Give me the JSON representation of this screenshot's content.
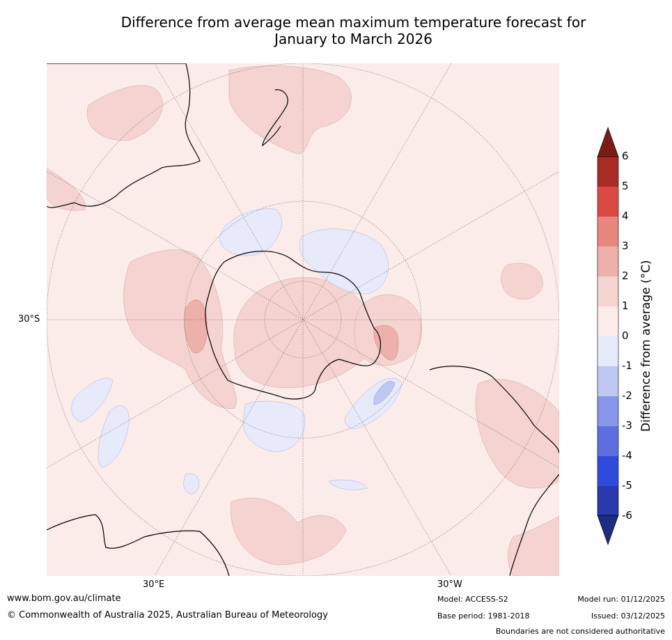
{
  "title": {
    "line1": "Difference from average mean maximum temperature forecast for",
    "line2": "January to March 2026"
  },
  "map": {
    "lat_label": "30°S",
    "lon_label_left": "30°E",
    "lon_label_right": "30°W",
    "ocean_color": "#fbebe9",
    "land_color": "#fbebe9"
  },
  "colorbar": {
    "label": "Difference from average (°C)",
    "ticks": [
      "6",
      "5",
      "4",
      "3",
      "2",
      "1",
      "0",
      "-1",
      "-2",
      "-3",
      "-4",
      "-5",
      "-6"
    ],
    "colors": [
      "#7a1d17",
      "#aa2a25",
      "#db4a42",
      "#e8877f",
      "#edb0aa",
      "#f4d3d0",
      "#fbebe9",
      "#e6eafb",
      "#bfc7f2",
      "#8796ea",
      "#5d70e2",
      "#2f4bdb",
      "#2739ab",
      "#1d2b82"
    ]
  },
  "footer": {
    "url": "www.bom.gov.au/climate",
    "copyright": "© Commonwealth of Australia 2025, Australian Bureau of Meteorology",
    "model": "Model: ACCESS-S2",
    "base_period": "Base period: 1981-2018",
    "model_run": "Model run: 01/12/2025",
    "issued": "Issued: 03/12/2025",
    "disclaimer": "Boundaries are not considered authoritative"
  }
}
